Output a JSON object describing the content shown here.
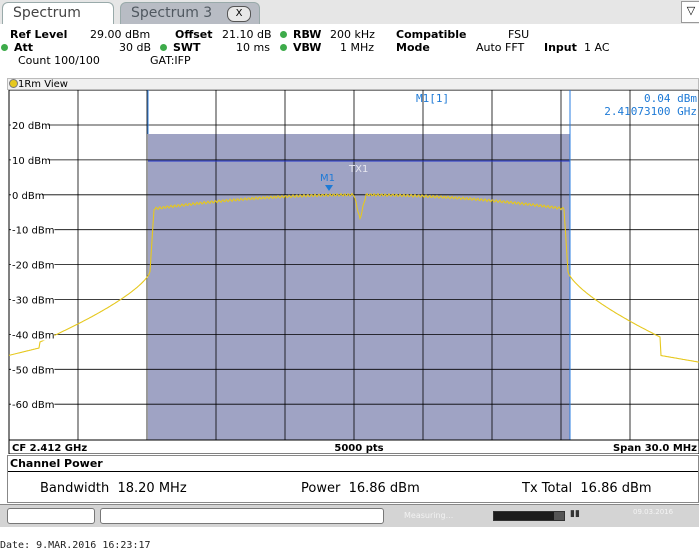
{
  "tabs": [
    {
      "label": "Spectrum",
      "active": true
    },
    {
      "label": "Spectrum 3",
      "active": false,
      "close_label": "X"
    }
  ],
  "header": {
    "ref_level_label": "Ref Level",
    "ref_level_value": "29.00 dBm",
    "offset_label": "Offset",
    "offset_value": "21.10 dB",
    "rbw_label": "RBW",
    "rbw_value": "200 kHz",
    "compatible_label": "Compatible",
    "compatible_value": "FSU",
    "att_label": "Att",
    "att_value": "30 dB",
    "swt_label": "SWT",
    "swt_value": "10 ms",
    "vbw_label": "VBW",
    "vbw_value": "1 MHz",
    "mode_label": "Mode",
    "mode_value": "Auto FFT",
    "input_label": "Input",
    "input_value": "1 AC",
    "count_label": "Count 100/100",
    "gat_label": "GAT:IFP"
  },
  "window": {
    "title": "1Rm View"
  },
  "marker": {
    "label": "M1",
    "table_label": "M1[1]",
    "level": "0.04 dBm",
    "frequency": "2.41073100 GHz",
    "channel_label": "TX1"
  },
  "y_axis": {
    "ticks": [
      {
        "label": "20 dBm",
        "value": 20
      },
      {
        "label": "10 dBm",
        "value": 10
      },
      {
        "label": "0 dBm",
        "value": 0
      },
      {
        "label": "-10 dBm",
        "value": -10
      },
      {
        "label": "-20 dBm",
        "value": -20
      },
      {
        "label": "-30 dBm",
        "value": -30
      },
      {
        "label": "-40 dBm",
        "value": -40
      },
      {
        "label": "-50 dBm",
        "value": -50
      },
      {
        "label": "-60 dBm",
        "value": -60
      }
    ]
  },
  "footer": {
    "cf": "CF 2.412 GHz",
    "points": "5000 pts",
    "span": "Span 30.0 MHz"
  },
  "channel_power": {
    "title": "Channel Power",
    "bandwidth_label": "Bandwidth",
    "bandwidth_value": "18.20 MHz",
    "power_label": "Power",
    "power_value": "16.86 dBm",
    "txtotal_label": "Tx Total",
    "txtotal_value": "16.86 dBm"
  },
  "status": {
    "measuring": "Measuring...",
    "progress_fraction": 0.85,
    "date_small": "09.03.2016"
  },
  "date_line": "Date: 9.MAR.2016  16:23:17",
  "colors": {
    "trace": "#e6c81e",
    "channel_band": "#9fa3c4",
    "marker": "#1e7ad6",
    "grid": "#000000",
    "status_dot": "#3dab4a"
  }
}
